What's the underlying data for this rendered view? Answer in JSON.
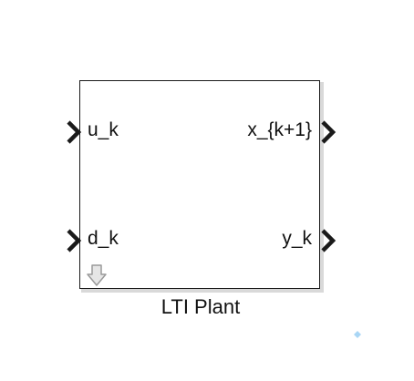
{
  "block": {
    "name": "LTI Plant",
    "inputs": [
      {
        "label": "u_k"
      },
      {
        "label": "d_k"
      }
    ],
    "outputs": [
      {
        "label": "x_{k+1}"
      },
      {
        "label": "y_k"
      }
    ]
  },
  "icons": {
    "port_chevron": "chevron-right-icon",
    "sample_time": "down-arrow-icon",
    "hint": "diamond-icon"
  },
  "colors": {
    "line": "#1a1a1a",
    "shadow": "#d9d9d9",
    "arrow_fill": "#e6e6e6",
    "arrow_stroke": "#9a9a9a",
    "hint": "#a9d6f5"
  }
}
